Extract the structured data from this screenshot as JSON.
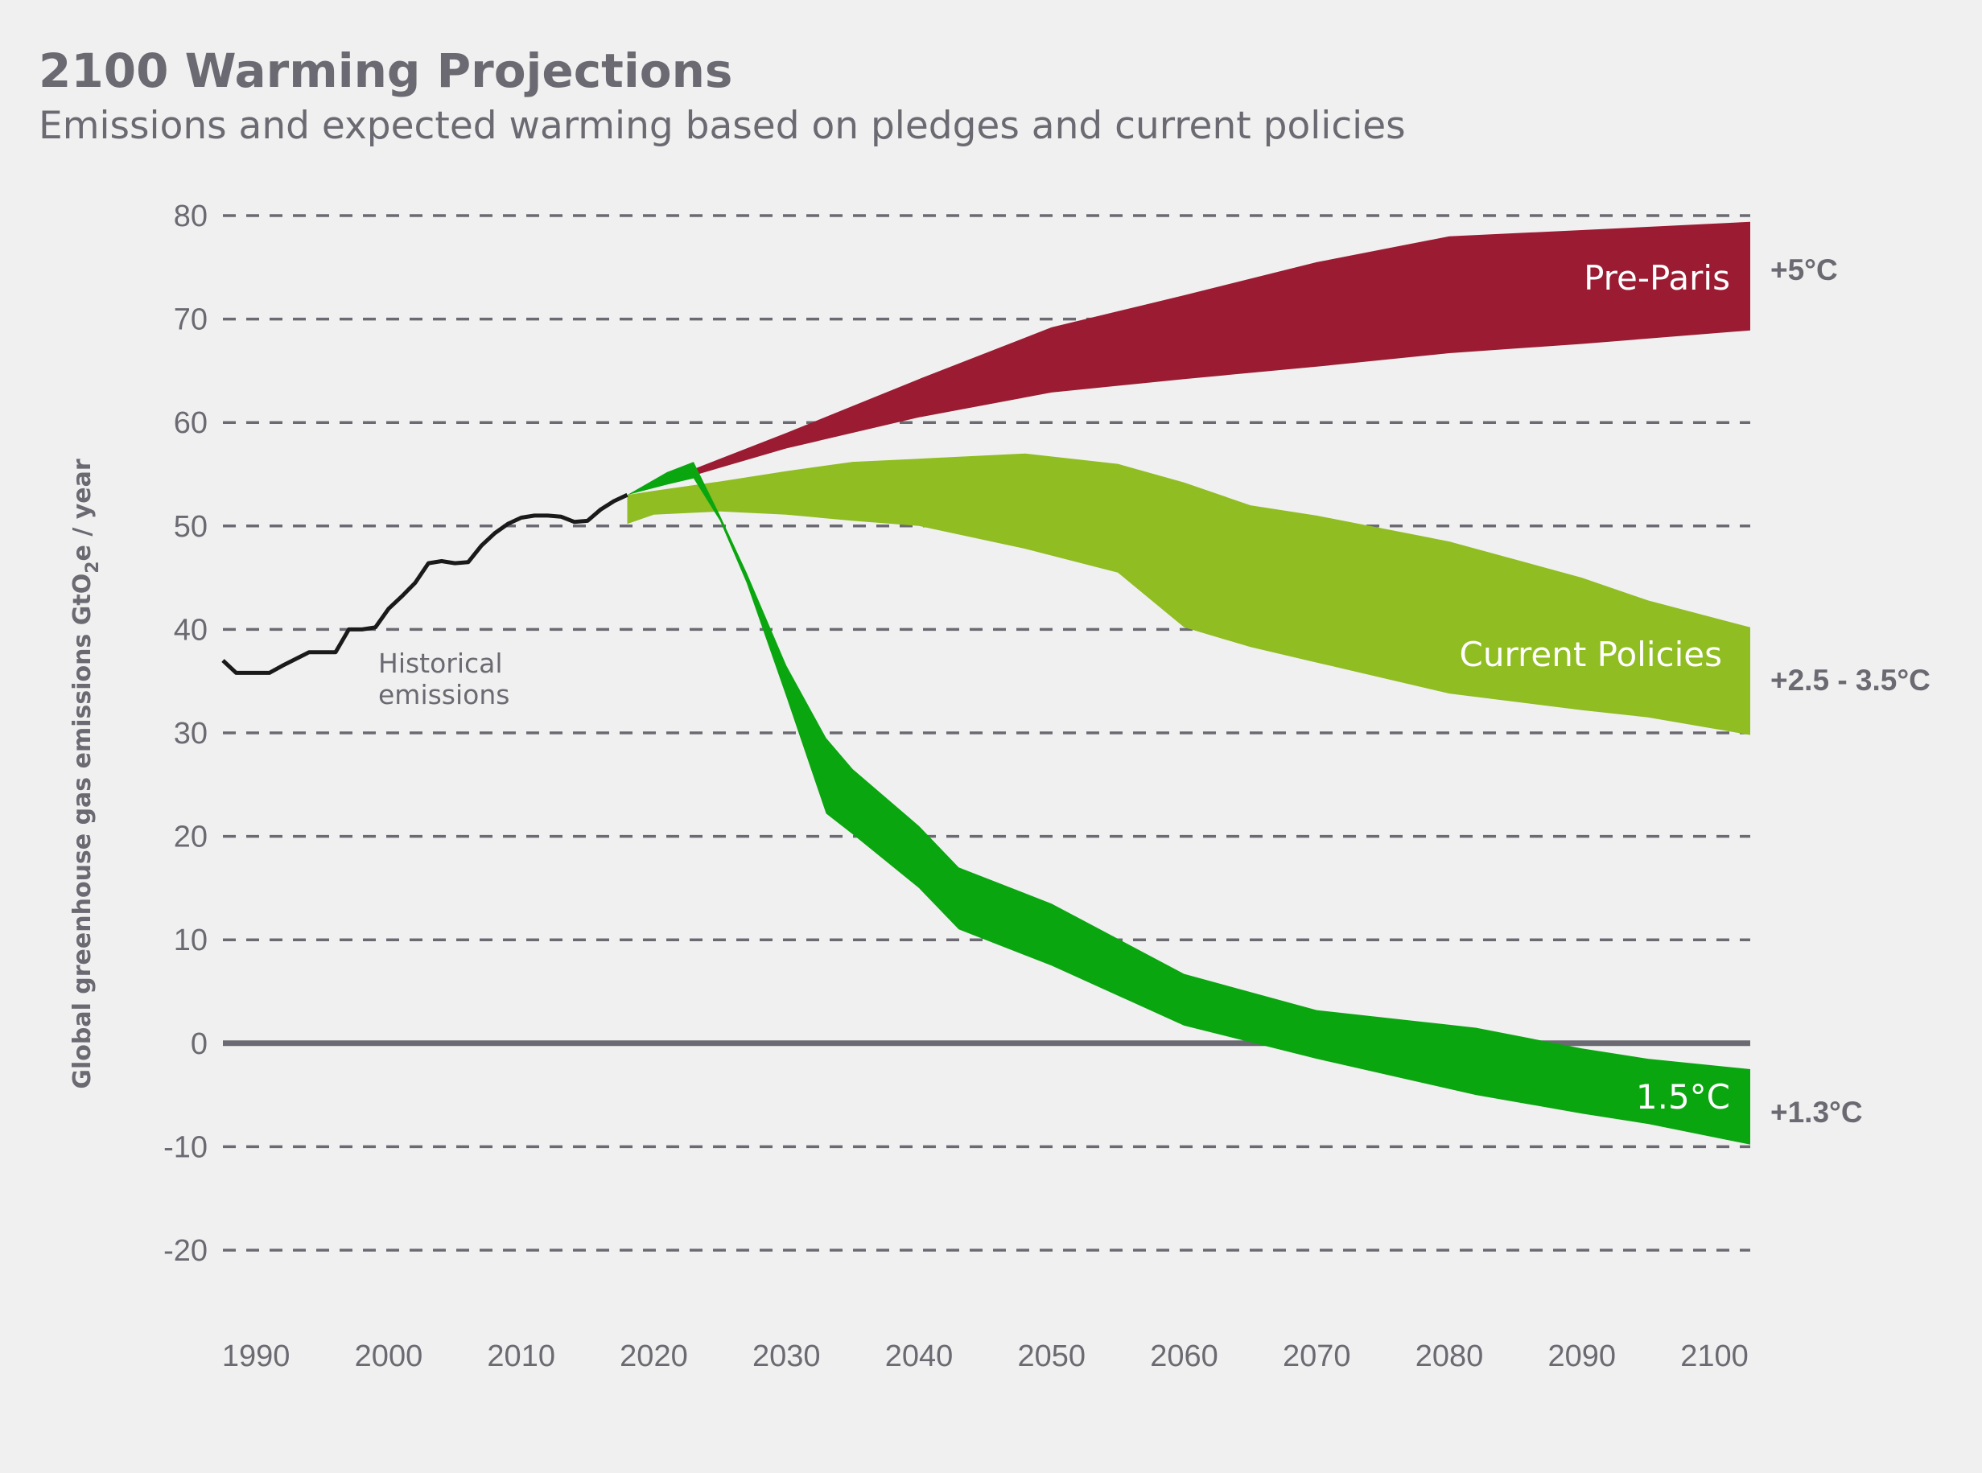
{
  "header": {
    "title": "2100 Warming Projections",
    "subtitle": "Emissions and expected warming based on pledges and current policies"
  },
  "chart_data": {
    "type": "area",
    "ylabel_main": "Global greenhouse gas emissions GtO",
    "ylabel_sub": "2",
    "ylabel_tail": "e / year",
    "xlabel": "",
    "xlim": [
      1987.5,
      2102.7
    ],
    "ylim": [
      -20,
      80
    ],
    "grid": true,
    "x_ticks": [
      1990,
      2000,
      2010,
      2020,
      2030,
      2040,
      2050,
      2060,
      2070,
      2080,
      2090,
      2100
    ],
    "y_ticks": [
      80,
      70,
      60,
      50,
      40,
      30,
      20,
      10,
      0,
      -10,
      -20
    ],
    "colors": {
      "pre_paris": "#9b1b32",
      "current_policies": "#8fbd22",
      "one_point_five": "#0aa60f",
      "historical": "#1a1a1a",
      "text": "#6b6a72"
    },
    "historical": {
      "name": "Historical emissions",
      "name_line1": "Historical",
      "name_line2": "emissions",
      "x": [
        1987.5,
        1988.5,
        1990,
        1991,
        1992,
        1994,
        1996,
        1997,
        1998,
        1999,
        2000,
        2001,
        2002,
        2003,
        2004,
        2005,
        2006,
        2007,
        2008,
        2009,
        2010,
        2011,
        2012,
        2013,
        2014,
        2015,
        2016,
        2017,
        2018
      ],
      "y": [
        37,
        35.8,
        35.8,
        35.8,
        36.5,
        37.8,
        37.8,
        40,
        40,
        40.2,
        42,
        43.2,
        44.5,
        46.4,
        46.6,
        46.4,
        46.5,
        48.1,
        49.3,
        50.2,
        50.8,
        51,
        51,
        50.9,
        50.4,
        50.5,
        51.6,
        52.4,
        53
      ]
    },
    "bands": [
      {
        "name": "Pre-Paris",
        "warming": "+5°C",
        "x": [
          2018,
          2030,
          2040,
          2050,
          2060,
          2070,
          2080,
          2090,
          2102.7
        ],
        "upper": [
          53,
          59,
          64.2,
          69.2,
          72.3,
          75.5,
          78,
          78.6,
          79.4
        ],
        "lower": [
          53,
          57.5,
          60.5,
          62.9,
          64.2,
          65.4,
          66.7,
          67.6,
          68.9
        ]
      },
      {
        "name": "Current Policies",
        "warming": "+2.5 - 3.5°C",
        "x": [
          2018,
          2020,
          2025,
          2030,
          2035,
          2040,
          2048,
          2055,
          2060,
          2065,
          2070,
          2080,
          2090,
          2095,
          2102.7
        ],
        "upper": [
          53,
          53.4,
          54.3,
          55.3,
          56.2,
          56.5,
          57,
          56,
          54.2,
          52,
          51,
          48.5,
          45,
          42.8,
          40.2
        ],
        "lower": [
          50.2,
          51.1,
          51.4,
          51.1,
          50.5,
          50,
          47.8,
          45.5,
          40.2,
          38.3,
          36.8,
          33.8,
          32.2,
          31.5,
          29.8
        ]
      },
      {
        "name": "1.5°C",
        "warming": "+1.3°C",
        "x": [
          2018,
          2021,
          2023,
          2025,
          2027,
          2030,
          2033,
          2035,
          2040,
          2043,
          2050,
          2060,
          2070,
          2082,
          2090,
          2095,
          2102.7
        ],
        "upper": [
          53,
          55.2,
          56.2,
          51,
          45.5,
          36.5,
          29.5,
          26.5,
          21,
          17,
          13.5,
          6.7,
          3.2,
          1.5,
          -0.5,
          -1.5,
          -2.5
        ],
        "lower": [
          53,
          54,
          54.6,
          50.5,
          44.5,
          33.5,
          22.2,
          20.2,
          15,
          11,
          7.5,
          1.7,
          -1.5,
          -5,
          -6.8,
          -7.8,
          -9.8
        ]
      }
    ]
  }
}
